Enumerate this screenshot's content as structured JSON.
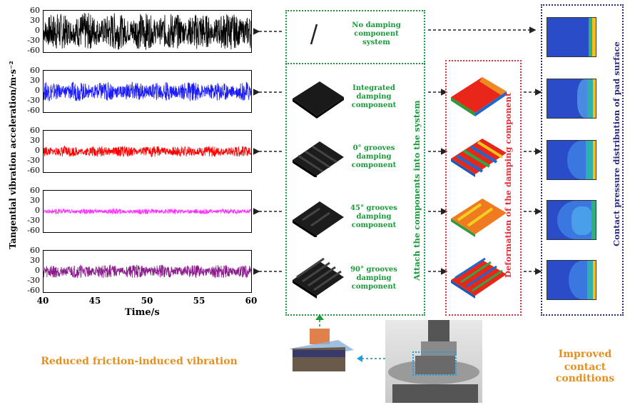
{
  "chart_data": {
    "type": "line",
    "title": "",
    "xlabel": "Time/s",
    "ylabel": "Tangential vibration acceleration/m·s⁻²",
    "xlim": [
      40,
      60
    ],
    "ylim": [
      -60,
      60
    ],
    "x_ticks": [
      "40",
      "45",
      "50",
      "55",
      "60"
    ],
    "y_ticks": [
      "60",
      "30",
      "0",
      "-30",
      "-60"
    ],
    "series": [
      {
        "color": "#000000",
        "amplitude": 55
      },
      {
        "color": "#1a1aff",
        "amplitude": 28
      },
      {
        "color": "#ff0000",
        "amplitude": 16
      },
      {
        "color": "#ff33ff",
        "amplitude": 8
      },
      {
        "color": "#8a1a8a",
        "amplitude": 20
      }
    ]
  },
  "components": {
    "no_damping": "No damping component system",
    "integrated": "Integrated damping component",
    "g0": "0° grooves damping component",
    "g45": "45° grooves damping component",
    "g90": "90° grooves damping component",
    "attach_label": "Attach the components into the system"
  },
  "deformation_label": "Deformation of the damping component",
  "contact_label": "Contact pressure distribution of pad surface",
  "reduced_label": "Reduced friction-induced vibration",
  "improved_label_1": "Improved",
  "improved_label_2": "contact conditions",
  "colors": {
    "green": "#1a9a3a",
    "red_dash": "#e0303a",
    "navy_dash": "#2a2a7a",
    "orange": "#e5901e"
  }
}
